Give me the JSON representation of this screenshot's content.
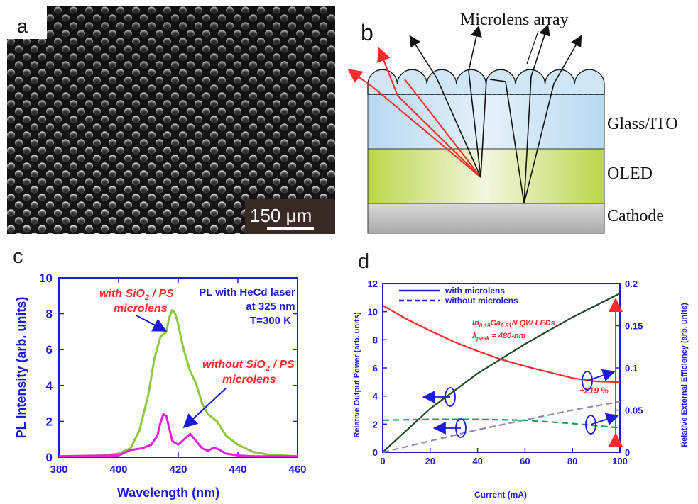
{
  "panels": {
    "a": {
      "letter": "a",
      "scale_bar": "150 μm"
    },
    "b": {
      "letter": "b",
      "title": "Microlens array",
      "layers": [
        "Glass/ITO",
        "OLED",
        "Cathode"
      ]
    },
    "c": {
      "letter": "c"
    },
    "d": {
      "letter": "d"
    }
  },
  "colors": {
    "axis_blue": "#1a1ae0",
    "red": "#ff2a2a",
    "magenta": "#e81ee0",
    "lime": "#8cc83c",
    "dark_green": "#1f4a2a",
    "gray_dash": "#8c8cb4",
    "teal_dash": "#1aa050"
  },
  "chart_data": [
    {
      "type": "line",
      "panel": "c",
      "xlabel": "Wavelength (nm)",
      "ylabel": "PL Intensity (arb. units)",
      "xlim": [
        380,
        460
      ],
      "ylim": [
        0,
        10
      ],
      "xticks": [
        "380",
        "400",
        "420",
        "440",
        "460"
      ],
      "yticks": [
        "0",
        "2",
        "4",
        "6",
        "8",
        "10"
      ],
      "annotations": {
        "laser_line1": "PL with HeCd laser",
        "laser_line2": "at 325 nm",
        "laser_line3": "T=300 K",
        "with_line1": "with SiO",
        "with_sub": "2",
        "with_line1_tail": " / PS",
        "with_line2": "microlens",
        "without_line1": "without SiO",
        "without_sub": "2",
        "without_line1_tail": " / PS",
        "without_line2": "microlens"
      },
      "series": [
        {
          "name": "with SiO2 / PS microlens",
          "x": [
            380,
            395,
            400,
            404,
            407,
            410,
            412,
            414,
            416,
            417,
            418,
            419,
            420,
            421,
            422,
            424,
            426,
            428,
            430,
            433,
            436,
            440,
            445,
            450,
            455,
            460
          ],
          "y": [
            0.05,
            0.1,
            0.2,
            0.5,
            1.5,
            3.5,
            5.5,
            6.7,
            7.0,
            7.8,
            8.2,
            8.0,
            7.4,
            6.6,
            5.9,
            4.8,
            4.1,
            3.0,
            2.4,
            2.0,
            1.2,
            0.7,
            0.3,
            0.15,
            0.1,
            0.05
          ]
        },
        {
          "name": "without SiO2 / PS microlens",
          "x": [
            380,
            400,
            404,
            408,
            411,
            413,
            414,
            415,
            416,
            417,
            418,
            420,
            422,
            424,
            426,
            428,
            430,
            432,
            434,
            436,
            440,
            445,
            460
          ],
          "y": [
            0.05,
            0.1,
            0.4,
            0.5,
            0.7,
            1.2,
            1.9,
            2.4,
            2.3,
            1.6,
            0.9,
            0.7,
            1.0,
            1.3,
            0.9,
            0.5,
            0.35,
            0.55,
            0.4,
            0.2,
            0.1,
            0.05,
            0.05
          ]
        }
      ]
    },
    {
      "type": "line",
      "panel": "d",
      "xlabel": "Current (mA)",
      "ylabel": "Relative Output Power (arb. units)",
      "y2label": "Relative External Efficiency (arb. units)",
      "xlim": [
        0,
        100
      ],
      "ylim": [
        0,
        12
      ],
      "y2lim": [
        0,
        0.2
      ],
      "xticks": [
        "0",
        "20",
        "40",
        "60",
        "80",
        "100"
      ],
      "yticks": [
        "0",
        "2",
        "4",
        "6",
        "8",
        "10",
        "12"
      ],
      "y2ticks": [
        "0",
        "0.05",
        "0.1",
        "0.15",
        "0.2"
      ],
      "legend": [
        "with microlens",
        "without microlens"
      ],
      "legend_position": "top",
      "annotations": {
        "led_in": "In",
        "led_in_sub": "0.19",
        "led_ga": "Ga",
        "led_ga_sub": "0.81",
        "led_tail": "N QW LEDs",
        "lambda": "λ",
        "lambda_sub": "peak",
        "lambda_tail": " = 480-nm",
        "gain": "+219 %"
      },
      "series": [
        {
          "name": "with microlens",
          "axis": "left",
          "style": "solid",
          "x": [
            0,
            20,
            40,
            60,
            80,
            100
          ],
          "y": [
            0,
            3.1,
            5.6,
            7.7,
            9.6,
            11.3
          ]
        },
        {
          "name": "without microlens",
          "axis": "left",
          "style": "dashed",
          "x": [
            0,
            20,
            40,
            60,
            80,
            100
          ],
          "y": [
            0,
            0.8,
            1.6,
            2.3,
            3.0,
            3.6
          ]
        },
        {
          "name": "with microlens",
          "axis": "right",
          "style": "solid",
          "x": [
            0,
            10,
            20,
            30,
            40,
            50,
            60,
            70,
            80,
            90,
            100
          ],
          "y": [
            0.174,
            0.158,
            0.144,
            0.131,
            0.12,
            0.11,
            0.102,
            0.095,
            0.088,
            0.084,
            0.083
          ]
        },
        {
          "name": "without microlens",
          "axis": "right",
          "style": "dashed",
          "x": [
            0,
            20,
            40,
            60,
            80,
            100
          ],
          "y": [
            0.038,
            0.039,
            0.039,
            0.038,
            0.034,
            0.029
          ]
        }
      ]
    }
  ]
}
